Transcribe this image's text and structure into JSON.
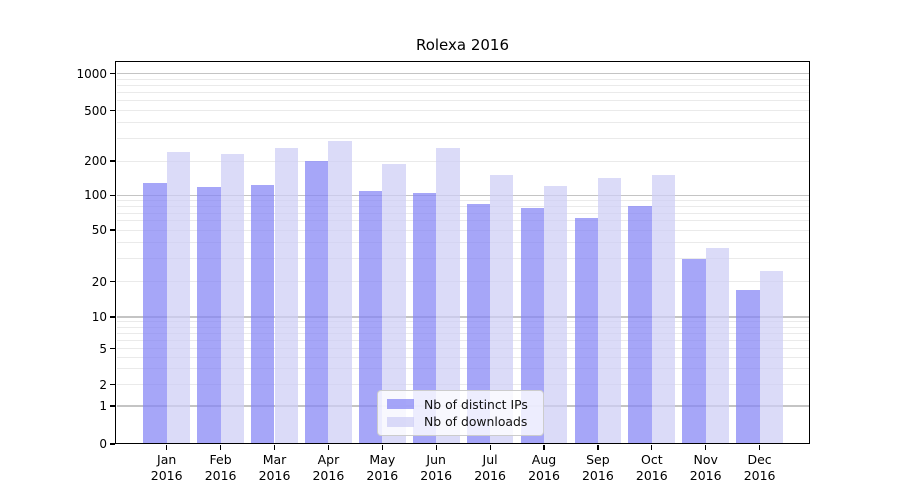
{
  "chart_data": {
    "type": "bar",
    "title": "Rolexa 2016",
    "categories": [
      "Jan",
      "Feb",
      "Mar",
      "Apr",
      "May",
      "Jun",
      "Jul",
      "Aug",
      "Sep",
      "Oct",
      "Nov",
      "Dec"
    ],
    "category_year": "2016",
    "series": [
      {
        "name": "Nb of distinct IPs",
        "color": "rgba(132,132,245,0.72)",
        "values": [
          127,
          118,
          123,
          200,
          110,
          105,
          84,
          77,
          64,
          81,
          30,
          17
        ]
      },
      {
        "name": "Nb of downloads",
        "color": "rgba(205,205,245,0.72)",
        "values": [
          235,
          228,
          255,
          290,
          187,
          252,
          150,
          121,
          143,
          150,
          36,
          24
        ]
      }
    ],
    "xlabel": "",
    "ylabel": "",
    "yscale": "symlog",
    "ylim": [
      0,
      1270
    ],
    "yticks": [
      0,
      1,
      2,
      5,
      10,
      20,
      50,
      100,
      200,
      500,
      1000
    ],
    "grid": true,
    "legend_position": "lower-center"
  }
}
